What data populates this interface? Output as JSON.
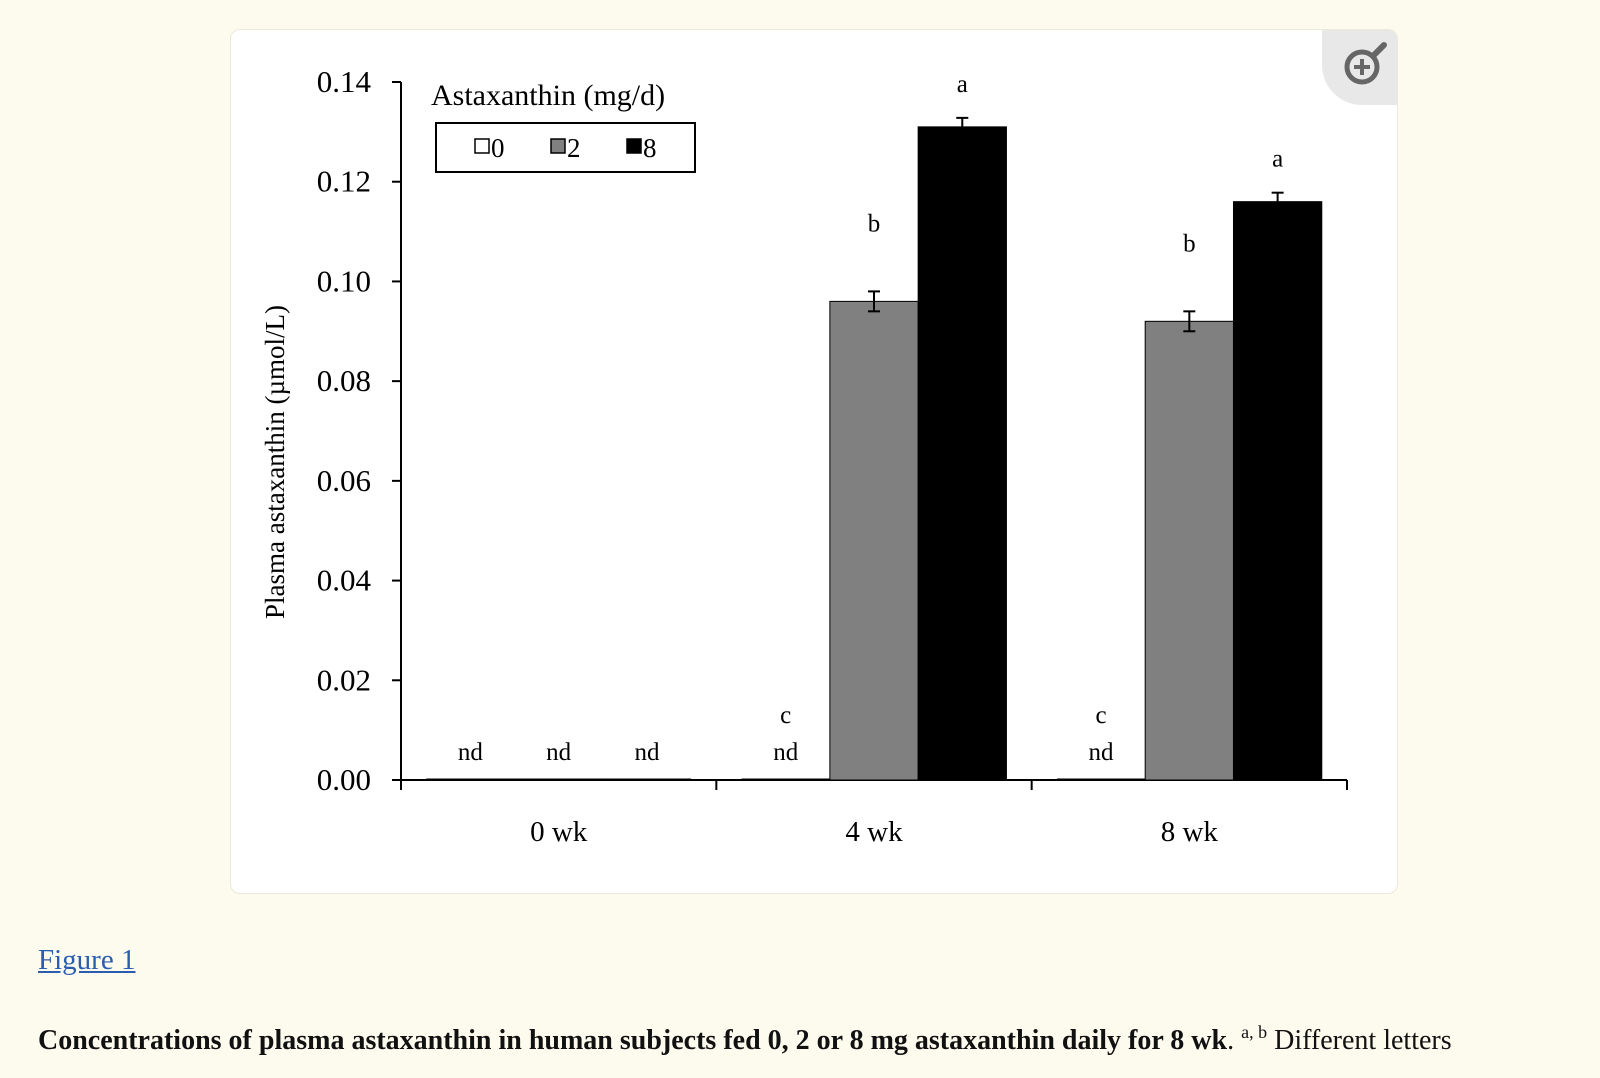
{
  "figure_link": "Figure 1",
  "caption": {
    "bold": "Concentrations of plasma astaxanthin in human subjects fed 0, 2 or 8 mg astaxanthin daily for 8 wk",
    "period": ".",
    "superscript": "a, b",
    "rest": " Different letters"
  },
  "zoom_icon": "zoom-in-icon",
  "chart_data": {
    "type": "bar",
    "title": "",
    "xlabel": "",
    "ylabel": "Plasma astaxanthin (µmol/L)",
    "ylim": [
      0,
      0.14
    ],
    "yticks": [
      "0.00",
      "0.02",
      "0.04",
      "0.06",
      "0.08",
      "0.10",
      "0.12",
      "0.14"
    ],
    "categories": [
      "0 wk",
      "4 wk",
      "8 wk"
    ],
    "legend_title": "Astaxanthin (mg/d)",
    "legend_position": "top-left",
    "grid": false,
    "series": [
      {
        "name": "0",
        "color": "#ffffff",
        "values": [
          0,
          0,
          0
        ],
        "errors": [
          0,
          0,
          0
        ],
        "labels": [
          "nd",
          "nd",
          "nd"
        ],
        "letters": [
          "",
          "c",
          "c"
        ]
      },
      {
        "name": "2",
        "color": "#808080",
        "values": [
          0,
          0.096,
          0.092
        ],
        "errors": [
          0,
          0.002,
          0.002
        ],
        "labels": [
          "nd",
          "",
          ""
        ],
        "letters": [
          "",
          "b",
          "b"
        ]
      },
      {
        "name": "8",
        "color": "#000000",
        "values": [
          0,
          0.131,
          0.116
        ],
        "errors": [
          0,
          0.0018,
          0.0018
        ],
        "labels": [
          "nd",
          "",
          ""
        ],
        "letters": [
          "",
          "a",
          "a"
        ]
      }
    ]
  }
}
